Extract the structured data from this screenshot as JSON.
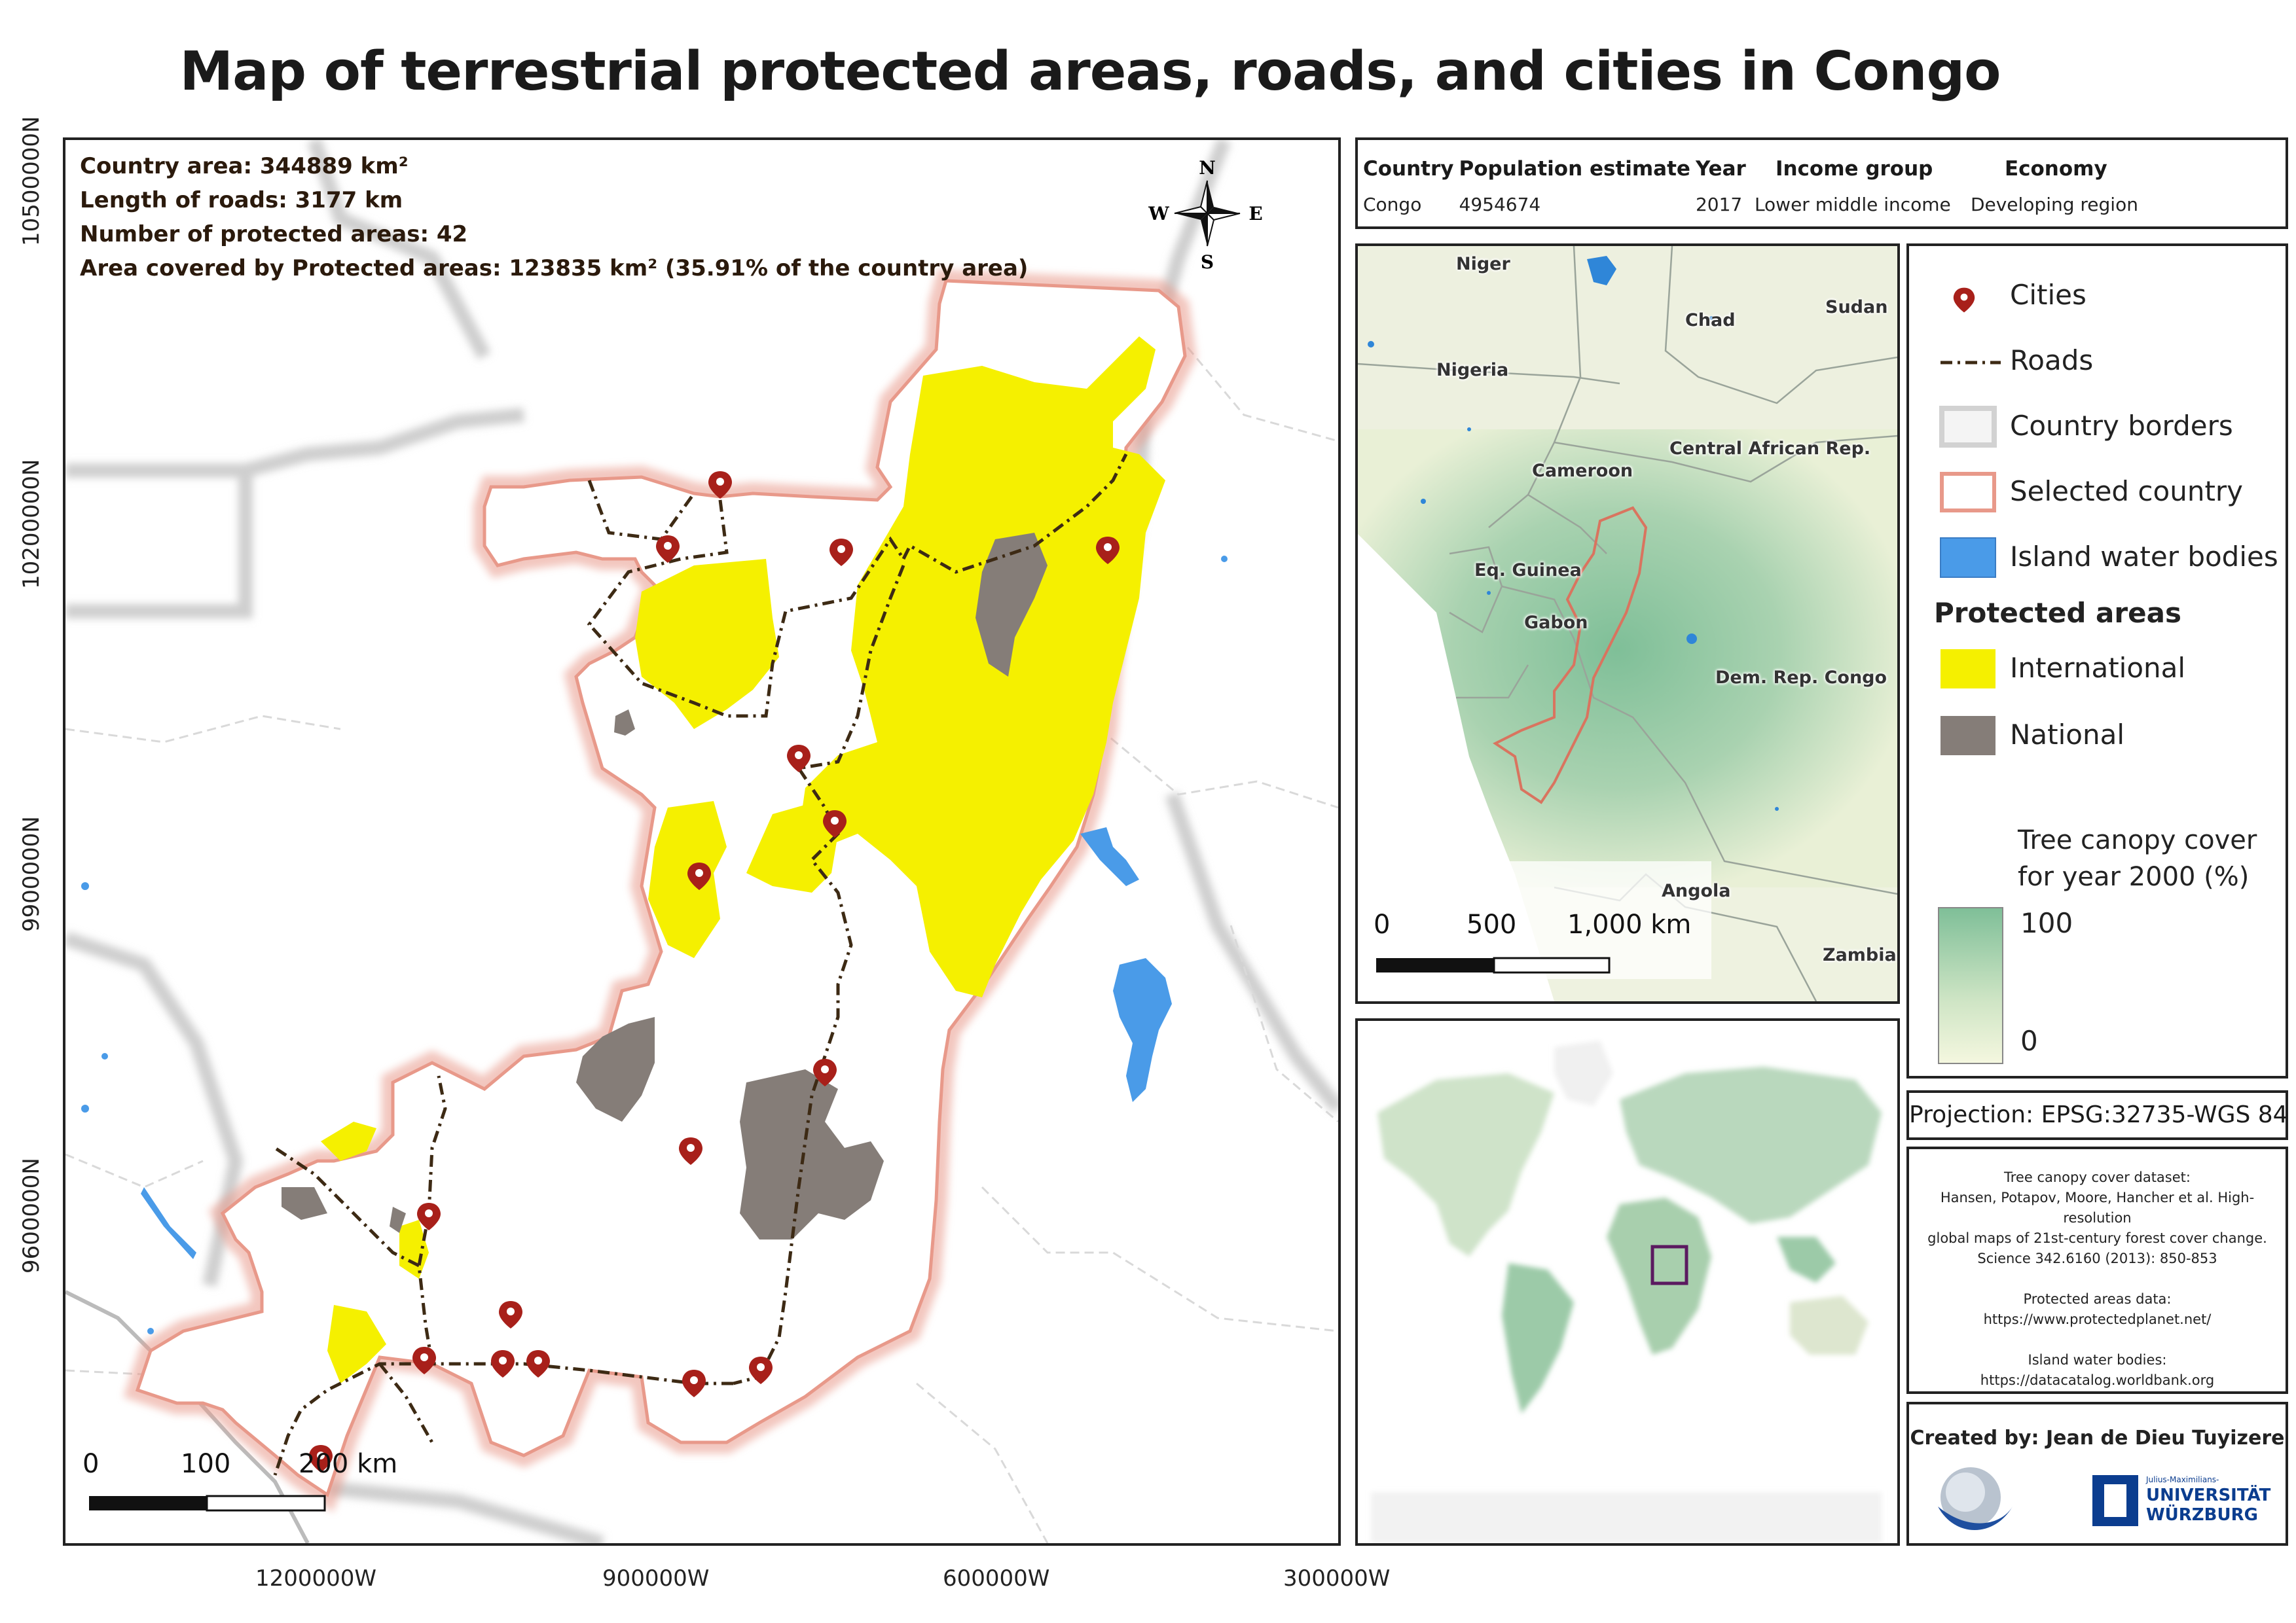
{
  "title": "Map of terrestrial protected areas, roads, and cities in Congo",
  "stats": {
    "country_area": "Country area: 344889 km²",
    "road_length": "Length of roads: 3177 km",
    "protected_count": "Number of protected areas: 42",
    "protected_cover": "Area covered by Protected areas: 123835 km² (35.91% of the country area)"
  },
  "compass": {
    "n": "N",
    "s": "S",
    "e": "E",
    "w": "W"
  },
  "axes": {
    "y_ticks": [
      "10500000N",
      "10200000N",
      "9900000N",
      "9600000N"
    ],
    "x_ticks": [
      "1200000W",
      "900000W",
      "600000W",
      "300000W"
    ]
  },
  "main_scale": {
    "labels": [
      "0",
      "100",
      "200 km"
    ]
  },
  "info_table": {
    "headers": [
      "Country",
      "Population estimate",
      "Year",
      "Income group",
      "Economy"
    ],
    "row": [
      "Congo",
      "4954674",
      "2017",
      "Lower middle income",
      "Developing region"
    ]
  },
  "region_map": {
    "countries": [
      "Niger",
      "Chad",
      "Sudan",
      "Nigeria",
      "Central African Rep.",
      "Cameroon",
      "Eq. Guinea",
      "Gabon",
      "Dem. Rep. Congo",
      "Angola",
      "Zambia"
    ],
    "scale_labels": [
      "0",
      "500",
      "1,000 km"
    ]
  },
  "legend": {
    "cities": "Cities",
    "roads": "Roads",
    "borders": "Country borders",
    "selected": "Selected country",
    "water": "Island water bodies",
    "protected_heading": "Protected areas",
    "international": "International",
    "national": "National",
    "canopy_title_1": "Tree canopy cover",
    "canopy_title_2": "for year 2000 (%)",
    "canopy_max": "100",
    "canopy_min": "0"
  },
  "projection": "Projection: EPSG:32735-WGS 84",
  "sources": [
    "Tree canopy cover dataset:",
    "Hansen, Potapov, Moore, Hancher et al. High-resolution",
    "global maps of 21st-century forest cover change.",
    "Science 342.6160 (2013): 850-853",
    "",
    "Protected areas data:",
    "https://www.protectedplanet.net/",
    "",
    "Island water bodies:",
    "https://datacatalog.worldbank.org"
  ],
  "credits": {
    "created_by": "Created by: Jean de Dieu Tuyizere",
    "uni_small": "Julius-Maximilians-",
    "uni_line1": "UNIVERSITÄT",
    "uni_line2": "WÜRZBURG"
  },
  "colors": {
    "international": "#f5f000",
    "national": "#857d78",
    "water": "#4a9be8",
    "selected_border": "#e8998a",
    "road": "#3d2a14",
    "city": "#a8201a",
    "frame": "#222222"
  }
}
